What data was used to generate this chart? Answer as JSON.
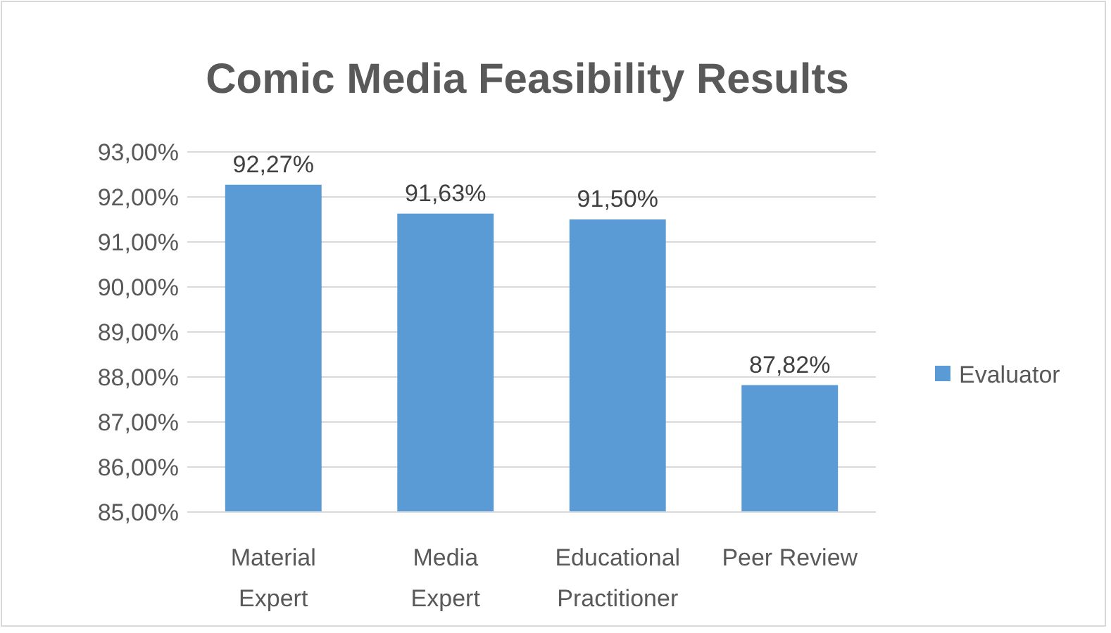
{
  "chart_data": {
    "type": "bar",
    "title": "Comic Media Feasibility Results",
    "categories": [
      "Material Expert",
      "Media Expert",
      "Educational Practitioner",
      "Peer Review"
    ],
    "series": [
      {
        "name": "Evaluator",
        "color": "#5b9bd5",
        "values": [
          92.27,
          91.63,
          91.5,
          87.82
        ],
        "value_labels": [
          "92,27%",
          "91,63%",
          "91,50%",
          "87,82%"
        ]
      }
    ],
    "ylim": [
      85,
      93
    ],
    "yticks": [
      {
        "value": 85,
        "label": "85,00%"
      },
      {
        "value": 86,
        "label": "86,00%"
      },
      {
        "value": 87,
        "label": "87,00%"
      },
      {
        "value": 88,
        "label": "88,00%"
      },
      {
        "value": 89,
        "label": "89,00%"
      },
      {
        "value": 90,
        "label": "90,00%"
      },
      {
        "value": 91,
        "label": "91,00%"
      },
      {
        "value": 92,
        "label": "92,00%"
      },
      {
        "value": 93,
        "label": "93,00%"
      }
    ],
    "grid": "y",
    "legend": "right"
  }
}
